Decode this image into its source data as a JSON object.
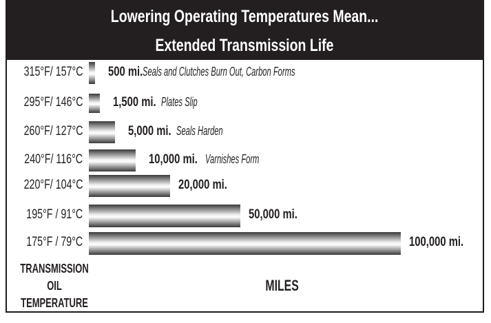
{
  "chart_data": {
    "type": "bar",
    "orientation": "horizontal",
    "title": "Lowering Operating Temperatures Mean...",
    "subtitle": "Extended Transmission Life",
    "ylabel": "TRANSMISSION OIL TEMPERATURE",
    "xlabel": "MILES",
    "categories": [
      "315°F/ 157°C",
      "295°F/ 146°C",
      "260°F/ 127°C",
      "240°F/ 116°C",
      "220°F/ 104°C",
      "195°F / 91°C",
      "175°F / 79°C"
    ],
    "values": [
      500,
      1500,
      5000,
      10000,
      20000,
      50000,
      100000
    ],
    "value_labels": [
      "500 mi.",
      "1,500 mi.",
      "5,000 mi.",
      "10,000 mi.",
      "20,000 mi.",
      "50,000 mi.",
      "100,000 mi."
    ],
    "annotations": [
      "Seals and Clutches Burn Out, Carbon Forms",
      "Plates Slip",
      "Seals Harden",
      "Varnishes Form",
      "",
      "",
      ""
    ],
    "colors": {
      "header_bg": "#231f20",
      "header_text": "#ffffff",
      "bar_dark": "#3a3a3a",
      "bar_light": "#ffffff"
    },
    "grid": false
  }
}
